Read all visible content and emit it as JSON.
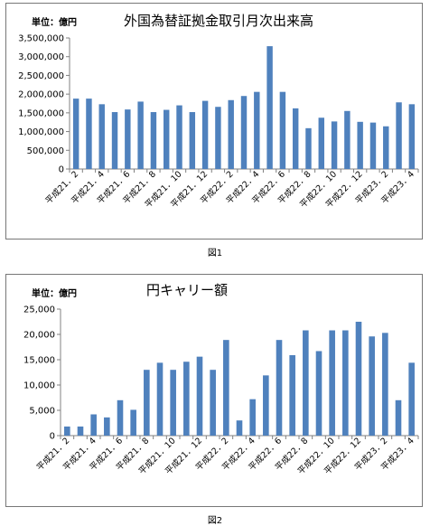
{
  "charts": [
    {
      "title": "外国為替証拠金取引月次出来高",
      "unit_label": "単位：億円",
      "caption": "図1"
    },
    {
      "title": "円キャリー額",
      "unit_label": "単位：億円",
      "caption": "図2"
    }
  ],
  "colors": {
    "bar": "#4f81bd",
    "axis": "#808080",
    "text": "#000000"
  },
  "chart_data": [
    {
      "type": "bar",
      "title": "外国為替証拠金取引月次出来高",
      "ylabel": "単位：億円",
      "ylim": [
        0,
        3500000
      ],
      "yticks": [
        0,
        500000,
        1000000,
        1500000,
        2000000,
        2500000,
        3000000,
        3500000
      ],
      "ytick_labels": [
        "0",
        "500,000",
        "1,000,000",
        "1,500,000",
        "2,000,000",
        "2,500,000",
        "3,000,000",
        "3,500,000"
      ],
      "categories": [
        "平成21．2",
        "平成21．3",
        "平成21．4",
        "平成21．5",
        "平成21．6",
        "平成21．7",
        "平成21．8",
        "平成21．9",
        "平成21．10",
        "平成21．11",
        "平成21．12",
        "平成22．1",
        "平成22．2",
        "平成22．3",
        "平成22．4",
        "平成22．5",
        "平成22．6",
        "平成22．7",
        "平成22．8",
        "平成22．9",
        "平成22．10",
        "平成22．11",
        "平成22．12",
        "平成23．1",
        "平成23．2",
        "平成23．3",
        "平成23．4"
      ],
      "xtick_labels": [
        "平成21．2",
        "平成21．4",
        "平成21．6",
        "平成21．8",
        "平成21．10",
        "平成21．12",
        "平成22．2",
        "平成22．4",
        "平成22．6",
        "平成22．8",
        "平成22．10",
        "平成22．12",
        "平成23．2",
        "平成23．4"
      ],
      "values": [
        1880000,
        1880000,
        1730000,
        1520000,
        1590000,
        1800000,
        1520000,
        1580000,
        1700000,
        1520000,
        1820000,
        1660000,
        1840000,
        1950000,
        2060000,
        3280000,
        2060000,
        1620000,
        1090000,
        1370000,
        1270000,
        1550000,
        1260000,
        1240000,
        1140000,
        1780000,
        1730000
      ],
      "grid": false
    },
    {
      "type": "bar",
      "title": "円キャリー額",
      "ylabel": "単位：億円",
      "ylim": [
        0,
        25000
      ],
      "yticks": [
        0,
        5000,
        10000,
        15000,
        20000,
        25000
      ],
      "ytick_labels": [
        "0",
        "5,000",
        "10,000",
        "15,000",
        "20,000",
        "25,000"
      ],
      "categories": [
        "平成21．2",
        "平成21．3",
        "平成21．4",
        "平成21．5",
        "平成21．6",
        "平成21．7",
        "平成21．8",
        "平成21．9",
        "平成21．10",
        "平成21．11",
        "平成21．12",
        "平成22．1",
        "平成22．2",
        "平成22．3",
        "平成22．4",
        "平成22．5",
        "平成22．6",
        "平成22．7",
        "平成22．8",
        "平成22．9",
        "平成22．10",
        "平成22．11",
        "平成22．12",
        "平成23．1",
        "平成23．2",
        "平成23．3",
        "平成23．4"
      ],
      "xtick_labels": [
        "平成21．2",
        "平成21．4",
        "平成21．6",
        "平成21．8",
        "平成21．10",
        "平成21．12",
        "平成22．2",
        "平成22．4",
        "平成22．6",
        "平成22．8",
        "平成22．10",
        "平成22．12",
        "平成23．2",
        "平成23．4"
      ],
      "values": [
        1800,
        1800,
        4200,
        3600,
        7000,
        5100,
        13000,
        14400,
        13000,
        14600,
        15600,
        13000,
        18900,
        3000,
        7200,
        11900,
        18900,
        15900,
        20800,
        16700,
        20800,
        20800,
        22500,
        19600,
        20300,
        7000,
        14400
      ],
      "grid": false
    }
  ]
}
